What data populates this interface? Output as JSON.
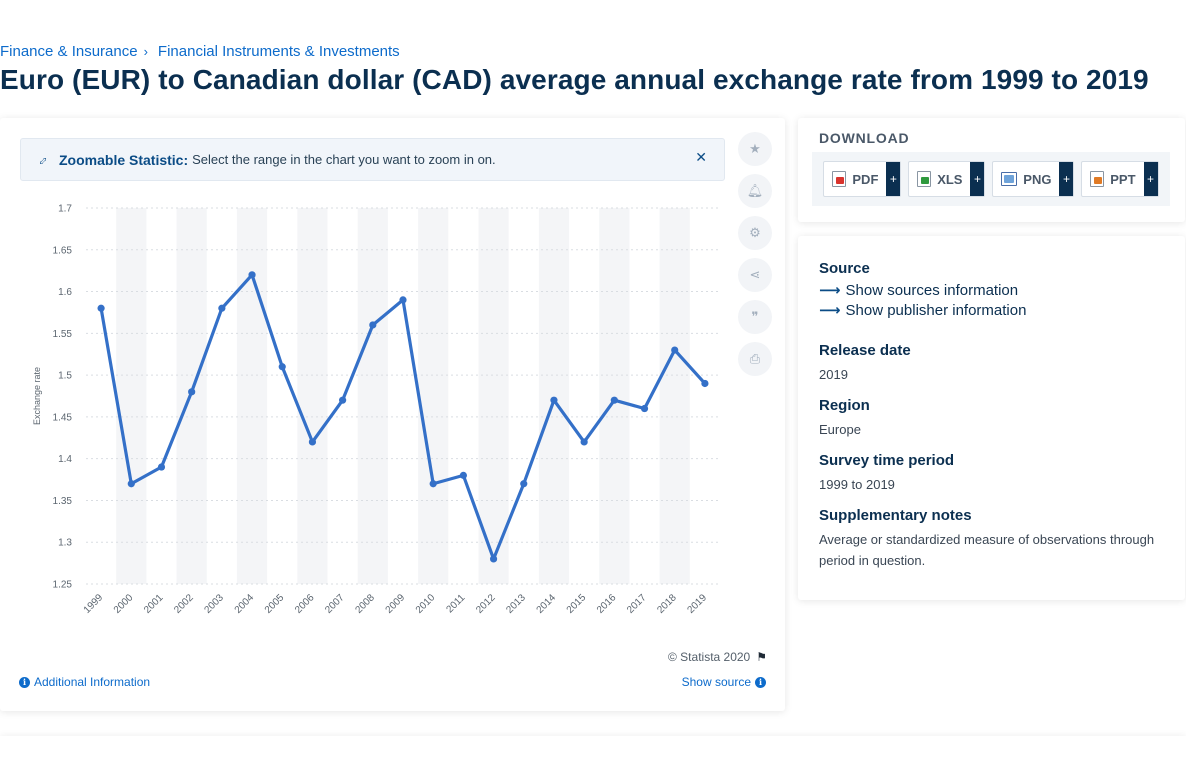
{
  "breadcrumb": {
    "items": [
      "Finance & Insurance",
      "Financial Instruments & Investments"
    ],
    "separator": "›"
  },
  "title": "Euro (EUR) to Canadian dollar (CAD) average annual exchange rate from 1999 to 2019",
  "zoom_banner": {
    "strong": "Zoomable Statistic:",
    "text": "Select the range in the chart you want to zoom in on.",
    "close_icon": "close-icon"
  },
  "tools": [
    "star-icon",
    "bell-icon",
    "gear-icon",
    "share-icon",
    "quote-icon",
    "print-icon"
  ],
  "chart_data": {
    "type": "line",
    "ylabel": "Exchange rate",
    "xlabel": "",
    "categories": [
      "1999",
      "2000",
      "2001",
      "2002",
      "2003",
      "2004",
      "2005",
      "2006",
      "2007",
      "2008",
      "2009",
      "2010",
      "2011",
      "2012",
      "2013",
      "2014",
      "2015",
      "2016",
      "2017",
      "2018",
      "2019"
    ],
    "series": [
      {
        "values": [
          1.58,
          1.37,
          1.39,
          1.48,
          1.58,
          1.62,
          1.51,
          1.42,
          1.47,
          1.56,
          1.59,
          1.37,
          1.38,
          1.28,
          1.37,
          1.47,
          1.42,
          1.47,
          1.46,
          1.53,
          1.49
        ]
      }
    ],
    "ylim": [
      1.25,
      1.7
    ],
    "yticks": [
      "1.25",
      "1.3",
      "1.35",
      "1.4",
      "1.45",
      "1.5",
      "1.55",
      "1.6",
      "1.65",
      "1.7"
    ],
    "grid": true,
    "line_color": "#3470c8"
  },
  "footer": {
    "copyright": "© Statista 2020",
    "additional_info": "Additional Information",
    "show_source": "Show source"
  },
  "download": {
    "title": "DOWNLOAD",
    "buttons": [
      {
        "label": "PDF",
        "plus": "+"
      },
      {
        "label": "XLS",
        "plus": "+"
      },
      {
        "label": "PNG",
        "plus": "+"
      },
      {
        "label": "PPT",
        "plus": "+"
      }
    ]
  },
  "source_panel": {
    "source_head": "Source",
    "show_sources": "Show sources information",
    "show_publisher": "Show publisher information",
    "release_head": "Release date",
    "release_val": "2019",
    "region_head": "Region",
    "region_val": "Europe",
    "survey_head": "Survey time period",
    "survey_val": "1999 to 2019",
    "notes_head": "Supplementary notes",
    "notes_val": "Average or standardized measure of observations through period in question."
  }
}
